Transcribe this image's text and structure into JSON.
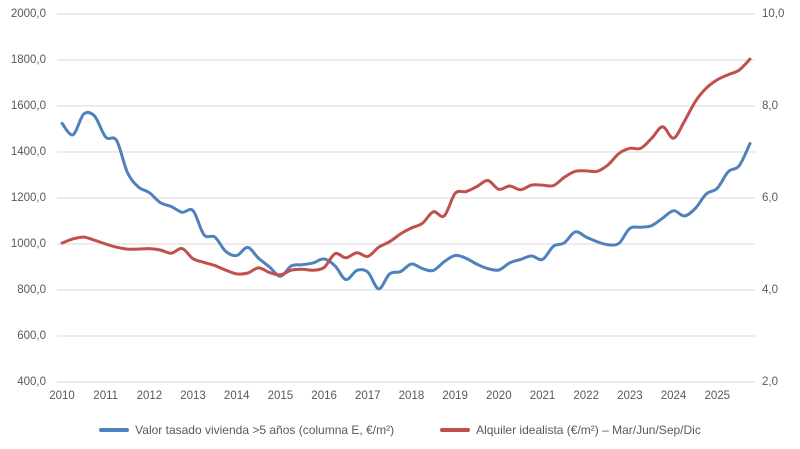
{
  "chart_data": {
    "type": "line",
    "title": "",
    "frequency": "quarterly",
    "quarter_labels": [
      "Mar",
      "Jun",
      "Sep",
      "Dic"
    ],
    "x_years": [
      "2010",
      "2011",
      "2012",
      "2013",
      "2014",
      "2015",
      "2016",
      "2017",
      "2018",
      "2019",
      "2020",
      "2021",
      "2022",
      "2023",
      "2024",
      "2025"
    ],
    "grid": true,
    "legend_position": "bottom",
    "axes": {
      "left": {
        "min": 400,
        "max": 2000,
        "tick_step": 200,
        "ticks": [
          "2000,0",
          "1800,0",
          "1600,0",
          "1400,0",
          "1200,0",
          "1000,0",
          "800,0",
          "600,0",
          "400,0"
        ]
      },
      "right": {
        "min": 2,
        "max": 10,
        "tick_step": 2,
        "ticks": [
          "10,0",
          "8,0",
          "6,0",
          "4,0",
          "2,0"
        ]
      }
    },
    "series": [
      {
        "name": "Valor tasado vivienda >5 años (columna E, €/m²)",
        "axis": "left",
        "color": "#4F81BD",
        "values": [
          1525,
          1475,
          1565,
          1555,
          1465,
          1450,
          1310,
          1248,
          1223,
          1180,
          1163,
          1138,
          1145,
          1040,
          1030,
          968,
          950,
          985,
          938,
          900,
          860,
          905,
          910,
          918,
          935,
          905,
          845,
          885,
          878,
          805,
          870,
          880,
          913,
          893,
          885,
          923,
          950,
          938,
          912,
          893,
          887,
          918,
          933,
          948,
          933,
          990,
          1005,
          1053,
          1030,
          1010,
          997,
          1003,
          1068,
          1073,
          1080,
          1112,
          1145,
          1122,
          1155,
          1218,
          1242,
          1314,
          1340,
          1437
        ]
      },
      {
        "name": "Alquiler idealista (€/m²) – Mar/Jun/Sep/Dic",
        "axis": "right",
        "color": "#C0504D",
        "values": [
          5.02,
          5.11,
          5.15,
          5.08,
          5.0,
          4.93,
          4.89,
          4.89,
          4.9,
          4.87,
          4.8,
          4.9,
          4.68,
          4.6,
          4.53,
          4.43,
          4.35,
          4.37,
          4.48,
          4.38,
          4.33,
          4.43,
          4.45,
          4.43,
          4.49,
          4.79,
          4.7,
          4.81,
          4.73,
          4.93,
          5.05,
          5.22,
          5.35,
          5.45,
          5.7,
          5.61,
          6.1,
          6.14,
          6.25,
          6.38,
          6.19,
          6.26,
          6.18,
          6.28,
          6.28,
          6.27,
          6.45,
          6.58,
          6.59,
          6.58,
          6.72,
          6.97,
          7.08,
          7.08,
          7.3,
          7.55,
          7.3,
          7.67,
          8.1,
          8.39,
          8.57,
          8.68,
          8.78,
          9.02
        ]
      }
    ]
  },
  "colors": {
    "grid": "#D9D9D9",
    "axis_text": "#595959",
    "background": "#FFFFFF"
  }
}
